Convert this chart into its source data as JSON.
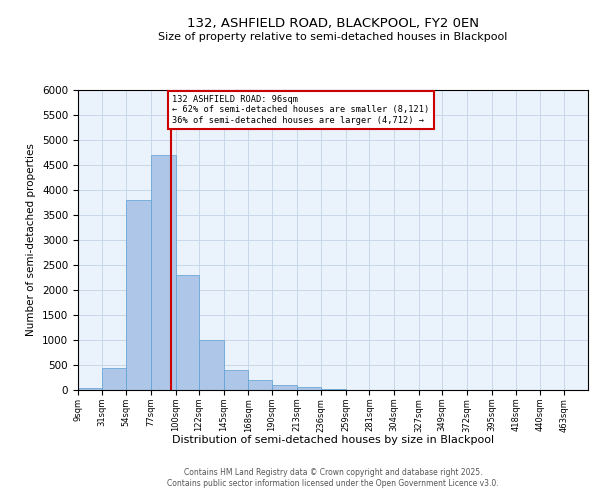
{
  "title1": "132, ASHFIELD ROAD, BLACKPOOL, FY2 0EN",
  "title2": "Size of property relative to semi-detached houses in Blackpool",
  "xlabel": "Distribution of semi-detached houses by size in Blackpool",
  "ylabel": "Number of semi-detached properties",
  "property_label": "132 ASHFIELD ROAD: 96sqm",
  "pct_smaller": 62,
  "count_smaller": "8,121",
  "pct_larger": 36,
  "count_larger": "4,712",
  "bin_labels": [
    "9sqm",
    "31sqm",
    "54sqm",
    "77sqm",
    "100sqm",
    "122sqm",
    "145sqm",
    "168sqm",
    "190sqm",
    "213sqm",
    "236sqm",
    "259sqm",
    "281sqm",
    "304sqm",
    "327sqm",
    "349sqm",
    "372sqm",
    "395sqm",
    "418sqm",
    "440sqm",
    "463sqm"
  ],
  "bin_edges": [
    9,
    31,
    54,
    77,
    100,
    122,
    145,
    168,
    190,
    213,
    236,
    259,
    281,
    304,
    327,
    349,
    372,
    395,
    418,
    440,
    463
  ],
  "bar_values": [
    50,
    450,
    3800,
    4700,
    2300,
    1000,
    400,
    200,
    110,
    60,
    30,
    5,
    2,
    1,
    1,
    0,
    0,
    0,
    0,
    0
  ],
  "bar_color": "#aec6e8",
  "bar_edge_color": "#5a9fd4",
  "vline_x": 96,
  "vline_color": "#cc0000",
  "annotation_box_color": "#cc0000",
  "ylim": [
    0,
    6000
  ],
  "yticks": [
    0,
    500,
    1000,
    1500,
    2000,
    2500,
    3000,
    3500,
    4000,
    4500,
    5000,
    5500,
    6000
  ],
  "grid_color": "#c8d8e8",
  "bg_color": "#eaf2fb",
  "footer1": "Contains HM Land Registry data © Crown copyright and database right 2025.",
  "footer2": "Contains public sector information licensed under the Open Government Licence v3.0."
}
